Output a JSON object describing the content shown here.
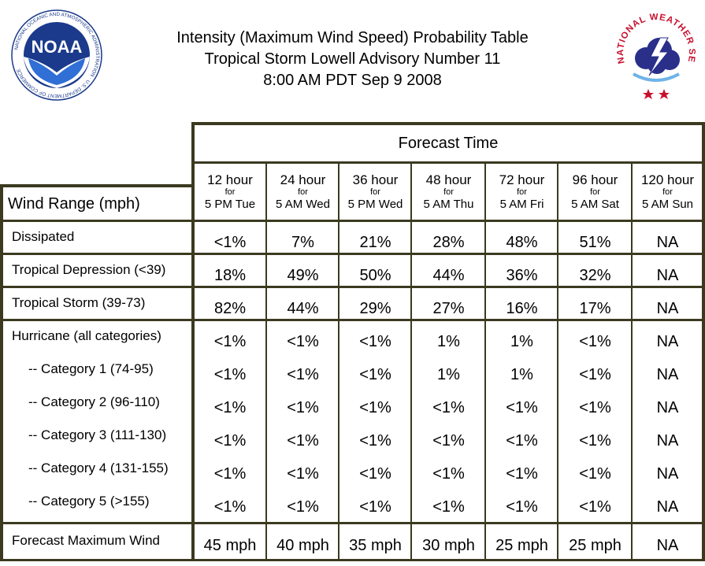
{
  "header": {
    "title_line1": "Intensity (Maximum Wind Speed) Probability Table",
    "title_line2": "Tropical Storm Lowell Advisory Number 11",
    "title_line3": "8:00 AM PDT Sep 9 2008",
    "left_logo_text": "NOAA",
    "left_logo_ring": "NATIONAL OCEANIC AND ATMOSPHERIC ADMINISTRATION · U.S. DEPARTMENT OF COMMERCE",
    "right_logo_ring": "NATIONAL WEATHER SERVICE"
  },
  "table": {
    "forecast_time_label": "Forecast Time",
    "wind_range_label": "Wind Range (mph)",
    "for_label": "for",
    "columns": [
      {
        "hour": "12 hour",
        "time": "5 PM Tue"
      },
      {
        "hour": "24 hour",
        "time": "5 AM Wed"
      },
      {
        "hour": "36 hour",
        "time": "5 PM Wed"
      },
      {
        "hour": "48 hour",
        "time": "5 AM Thu"
      },
      {
        "hour": "72 hour",
        "time": "5 AM Fri"
      },
      {
        "hour": "96 hour",
        "time": "5 AM Sat"
      },
      {
        "hour": "120 hour",
        "time": "5 AM Sun"
      }
    ],
    "rows": [
      {
        "label": "Dissipated",
        "values": [
          "<1%",
          "7%",
          "21%",
          "28%",
          "48%",
          "51%",
          "NA"
        ]
      },
      {
        "label": "Tropical Depression (<39)",
        "values": [
          "18%",
          "49%",
          "50%",
          "44%",
          "36%",
          "32%",
          "NA"
        ]
      },
      {
        "label": "Tropical Storm (39-73)",
        "values": [
          "82%",
          "44%",
          "29%",
          "27%",
          "16%",
          "17%",
          "NA"
        ]
      },
      {
        "label": "Hurricane (all categories)",
        "values": [
          "<1%",
          "<1%",
          "<1%",
          "1%",
          "1%",
          "<1%",
          "NA"
        ]
      },
      {
        "label": "-- Category 1 (74-95)",
        "values": [
          "<1%",
          "<1%",
          "<1%",
          "1%",
          "1%",
          "<1%",
          "NA"
        ]
      },
      {
        "label": "-- Category 2 (96-110)",
        "values": [
          "<1%",
          "<1%",
          "<1%",
          "<1%",
          "<1%",
          "<1%",
          "NA"
        ]
      },
      {
        "label": "-- Category 3 (111-130)",
        "values": [
          "<1%",
          "<1%",
          "<1%",
          "<1%",
          "<1%",
          "<1%",
          "NA"
        ]
      },
      {
        "label": "-- Category 4 (131-155)",
        "values": [
          "<1%",
          "<1%",
          "<1%",
          "<1%",
          "<1%",
          "<1%",
          "NA"
        ]
      },
      {
        "label": "-- Category 5 (>155)",
        "values": [
          "<1%",
          "<1%",
          "<1%",
          "<1%",
          "<1%",
          "<1%",
          "NA"
        ]
      },
      {
        "label": "Forecast Maximum Wind",
        "values": [
          "45 mph",
          "40 mph",
          "35 mph",
          "30 mph",
          "25 mph",
          "25 mph",
          "NA"
        ]
      }
    ]
  },
  "colors": {
    "border": "#3b3a20",
    "noaa_blue": "#1b3a8c",
    "nws_red": "#c8102e"
  }
}
